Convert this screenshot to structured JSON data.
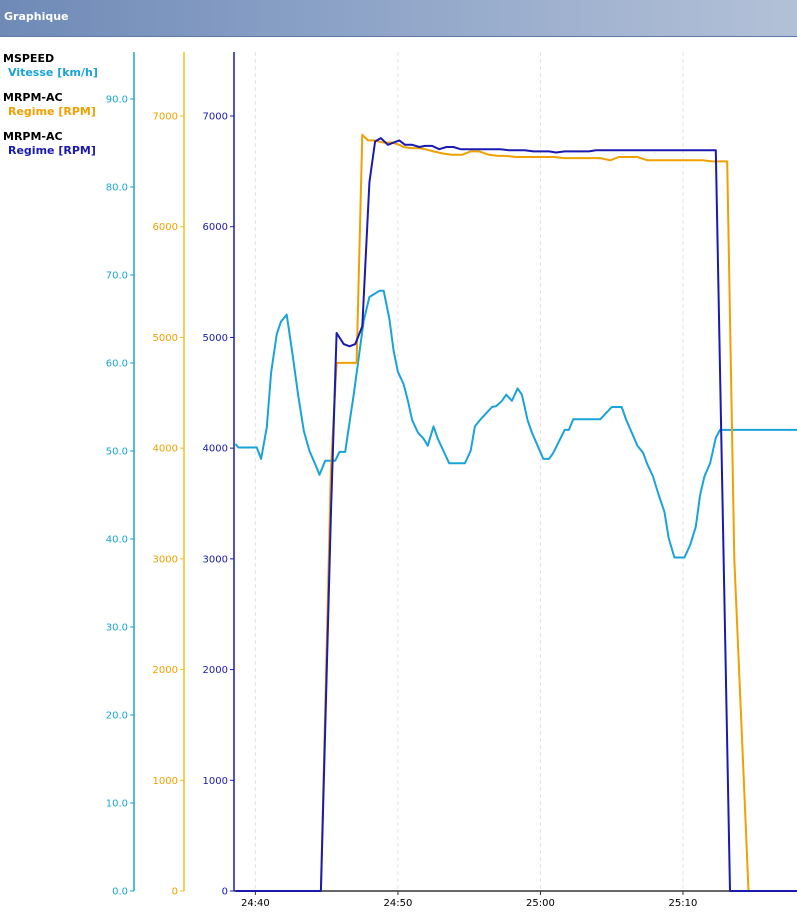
{
  "window": {
    "title": "Graphique"
  },
  "legend": [
    {
      "channel": "MSPEED",
      "label": "Vitesse [km/h]",
      "color": "#1aa3d9"
    },
    {
      "channel": "MRPM-AC",
      "label": "Regime [RPM]",
      "color": "#f0a000"
    },
    {
      "channel": "MRPM-AC",
      "label": "Regime [RPM]",
      "color": "#1a1ab0"
    }
  ],
  "chart_data": {
    "type": "line",
    "x_tick_labels": [
      "24:40",
      "24:50",
      "25:00",
      "25:10"
    ],
    "x_ticks_s": [
      1480,
      1490,
      1500,
      1510
    ],
    "xlim_s": [
      1478.5,
      1518
    ],
    "grid": "vertical",
    "axes": [
      {
        "id": "speed",
        "unit": "km/h",
        "ylim": [
          0,
          90
        ],
        "ticks": [
          "0.0",
          "10.0",
          "20.0",
          "30.0",
          "40.0",
          "50.0",
          "60.0",
          "70.0",
          "80.0",
          "90.0"
        ],
        "color": "#1aa3d9"
      },
      {
        "id": "rpm_orange",
        "unit": "RPM",
        "ylim": [
          0,
          7000
        ],
        "ticks": [
          "0",
          "1000",
          "2000",
          "3000",
          "4000",
          "5000",
          "6000",
          "7000"
        ],
        "color": "#f0c020"
      },
      {
        "id": "rpm_blue",
        "unit": "RPM",
        "ylim": [
          0,
          7000
        ],
        "ticks": [
          "0",
          "1000",
          "2000",
          "3000",
          "4000",
          "5000",
          "6000",
          "7000"
        ],
        "color": "#1a1ab0"
      }
    ],
    "series": [
      {
        "name": "Vitesse [km/h]",
        "axis": "speed",
        "color": "#1aa3d9",
        "x": [
          1478.6,
          1478.8,
          1479.2,
          1479.7,
          1480.1,
          1480.4,
          1480.8,
          1481.1,
          1481.5,
          1481.8,
          1482.2,
          1482.6,
          1483.0,
          1483.4,
          1483.8,
          1484.2,
          1484.5,
          1484.9,
          1485.3,
          1485.6,
          1485.9,
          1486.3,
          1486.7,
          1486.9,
          1487.2,
          1487.6,
          1488.0,
          1488.3,
          1488.7,
          1489.0,
          1489.4,
          1489.7,
          1490.0,
          1490.4,
          1490.7,
          1491.0,
          1491.4,
          1491.8,
          1492.1,
          1492.5,
          1492.8,
          1493.2,
          1493.6,
          1494.0,
          1494.3,
          1494.7,
          1495.1,
          1495.4,
          1495.8,
          1496.2,
          1496.6,
          1496.9,
          1497.3,
          1497.6,
          1498.0,
          1498.4,
          1498.7,
          1499.1,
          1499.4,
          1499.8,
          1500.2,
          1500.6,
          1500.9,
          1501.3,
          1501.7,
          1502.0,
          1502.3,
          1502.7,
          1503.1,
          1503.4,
          1503.8,
          1504.2,
          1504.6,
          1505.0,
          1505.3,
          1505.7,
          1506.0,
          1506.4,
          1506.8,
          1507.2,
          1507.5,
          1507.9,
          1508.3,
          1508.7,
          1509.0,
          1509.4,
          1509.7,
          1510.1,
          1510.5,
          1510.9,
          1511.2,
          1511.5,
          1511.9,
          1512.3,
          1512.6,
          1513.0,
          1513.4,
          1513.8,
          1514.1,
          1514.5,
          1514.9,
          1515.2,
          1515.6,
          1515.9,
          1516.3,
          1516.7,
          1517.0,
          1517.4,
          1518.0
        ],
        "y": [
          50.8,
          50.4,
          50.4,
          50.4,
          50.4,
          49.1,
          52.7,
          58.9,
          63.3,
          64.7,
          65.5,
          61.1,
          56.4,
          52.3,
          50.0,
          48.5,
          47.3,
          48.9,
          48.9,
          48.9,
          49.9,
          49.9,
          54.3,
          56.4,
          60.0,
          64.8,
          67.5,
          67.8,
          68.2,
          68.2,
          65.0,
          61.4,
          59.0,
          57.6,
          55.7,
          53.5,
          52.1,
          51.4,
          50.6,
          52.8,
          51.4,
          50.0,
          48.6,
          48.6,
          48.6,
          48.6,
          50.0,
          52.8,
          53.6,
          54.3,
          55.0,
          55.1,
          55.7,
          56.4,
          55.7,
          57.1,
          56.4,
          53.5,
          52.1,
          50.6,
          49.1,
          49.1,
          49.8,
          51.1,
          52.4,
          52.4,
          53.6,
          53.6,
          53.6,
          53.6,
          53.6,
          53.6,
          54.3,
          55.0,
          55.0,
          55.0,
          53.6,
          52.1,
          50.6,
          49.8,
          48.5,
          47.1,
          45.0,
          43.1,
          40.1,
          37.9,
          37.9,
          37.9,
          39.3,
          41.4,
          45.0,
          47.1,
          48.6,
          51.5,
          52.4,
          52.4,
          52.4,
          52.4,
          52.4,
          52.4,
          52.4,
          52.4,
          52.4,
          52.4,
          52.4,
          52.4,
          52.4,
          52.4,
          52.4
        ]
      },
      {
        "name": "Regime [RPM]",
        "axis": "rpm_orange",
        "color": "#f0a000",
        "x": [
          1478.6,
          1484.6,
          1485.3,
          1485.7,
          1486.0,
          1486.2,
          1486.6,
          1487.1,
          1487.5,
          1487.9,
          1488.3,
          1489.0,
          1489.6,
          1490.1,
          1490.4,
          1490.9,
          1491.5,
          1491.9,
          1492.5,
          1493.2,
          1493.8,
          1494.5,
          1495.1,
          1495.7,
          1496.4,
          1497.0,
          1497.6,
          1498.3,
          1499.0,
          1499.7,
          1500.3,
          1501.0,
          1501.6,
          1502.3,
          1502.9,
          1503.6,
          1504.2,
          1504.9,
          1505.5,
          1506.2,
          1506.8,
          1507.5,
          1508.1,
          1508.8,
          1509.4,
          1510.1,
          1510.7,
          1511.4,
          1512.0,
          1512.6,
          1513.1,
          1513.6,
          1514.3,
          1514.6,
          1518.0
        ],
        "y": [
          0,
          0,
          3800,
          4770,
          4770,
          4770,
          4770,
          4770,
          6830,
          6780,
          6780,
          6760,
          6760,
          6740,
          6720,
          6710,
          6710,
          6700,
          6680,
          6660,
          6650,
          6650,
          6680,
          6680,
          6650,
          6640,
          6640,
          6630,
          6630,
          6630,
          6630,
          6630,
          6620,
          6620,
          6620,
          6620,
          6620,
          6600,
          6630,
          6630,
          6630,
          6600,
          6600,
          6600,
          6600,
          6600,
          6600,
          6600,
          6590,
          6590,
          6590,
          3000,
          900,
          0,
          0
        ]
      },
      {
        "name": "Regime [RPM]",
        "axis": "rpm_blue",
        "color": "#1a1ab0",
        "x": [
          1478.6,
          1484.6,
          1485.3,
          1485.7,
          1486.2,
          1486.6,
          1487.0,
          1487.5,
          1488.0,
          1488.4,
          1488.8,
          1489.3,
          1489.7,
          1490.1,
          1490.5,
          1491.0,
          1491.5,
          1491.9,
          1492.4,
          1492.9,
          1493.4,
          1493.9,
          1494.4,
          1495.0,
          1495.6,
          1496.1,
          1496.6,
          1497.2,
          1497.8,
          1498.3,
          1498.9,
          1499.5,
          1500.0,
          1500.6,
          1501.1,
          1501.7,
          1502.2,
          1502.8,
          1503.4,
          1503.9,
          1504.5,
          1505.0,
          1505.6,
          1506.1,
          1506.7,
          1507.2,
          1507.8,
          1508.4,
          1508.9,
          1509.5,
          1510.0,
          1510.6,
          1511.1,
          1511.6,
          1512.0,
          1512.3,
          1513.3,
          1518.0
        ],
        "y": [
          0,
          0,
          3400,
          5040,
          4940,
          4920,
          4940,
          5100,
          6400,
          6770,
          6800,
          6740,
          6760,
          6780,
          6740,
          6740,
          6720,
          6730,
          6730,
          6700,
          6720,
          6720,
          6700,
          6700,
          6700,
          6700,
          6700,
          6700,
          6690,
          6690,
          6690,
          6680,
          6680,
          6680,
          6670,
          6680,
          6680,
          6680,
          6680,
          6690,
          6690,
          6690,
          6690,
          6690,
          6690,
          6690,
          6690,
          6690,
          6690,
          6690,
          6690,
          6690,
          6690,
          6690,
          6690,
          6690,
          0,
          0
        ]
      }
    ]
  }
}
